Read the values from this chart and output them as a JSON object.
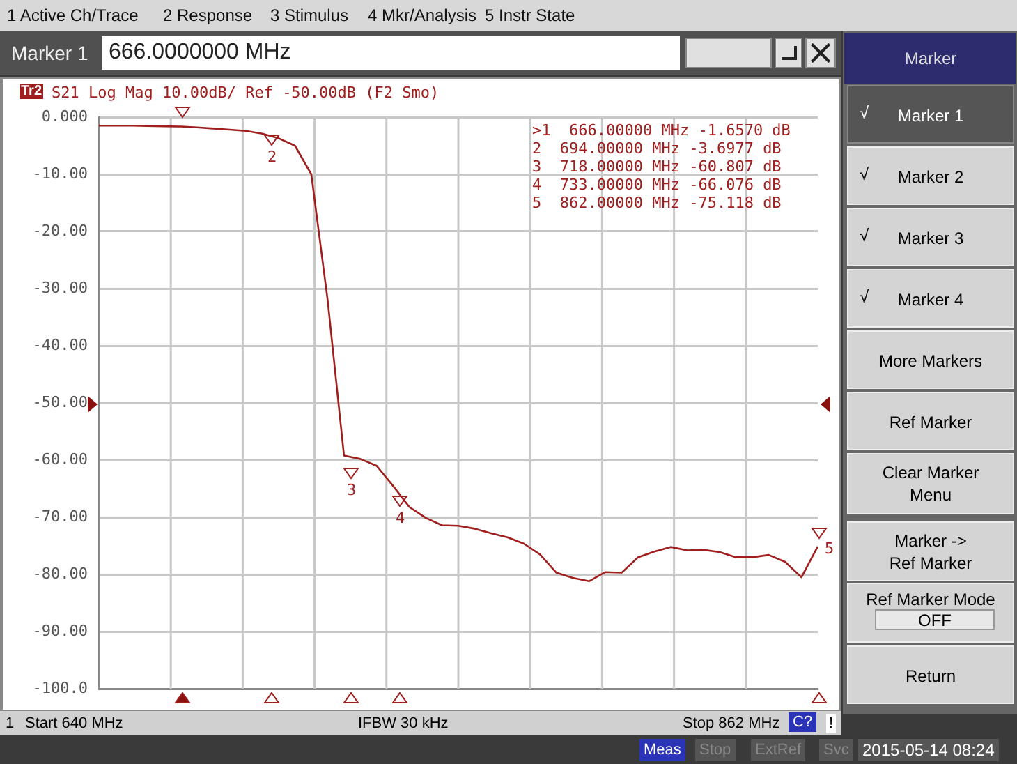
{
  "chart_data": {
    "type": "line",
    "title": "S21 Log Mag 10.00dB/ Ref -50.00dB (F2 Smo)",
    "categories": [
      null,
      null,
      null,
      null,
      null,
      null,
      null,
      null,
      null,
      null,
      null,
      null,
      null,
      null,
      null,
      null,
      null,
      null,
      null,
      null,
      null,
      null,
      null,
      null,
      null,
      null,
      null,
      null,
      null,
      null,
      null,
      null,
      null,
      null,
      null,
      null,
      null,
      null,
      null,
      null,
      null,
      null,
      null,
      null,
      null
    ],
    "series": [
      {
        "color": "#a01e1e",
        "values": [
          -1.5,
          -1.5,
          -1.5,
          -1.55,
          -1.6,
          -1.65,
          -1.8,
          -2,
          -2.2,
          -2.4,
          -2.9,
          -3.7,
          -5,
          -10,
          -32,
          -59.2,
          -59.8,
          -61,
          -64.5,
          -68.2,
          -70.1,
          -71.4,
          -71.5,
          -72,
          -72.8,
          -73.5,
          -74.6,
          -76.5,
          -79.7,
          -80.6,
          -81.2,
          -79.6,
          -79.7,
          -77,
          -76,
          -75.2,
          -75.8,
          -75.7,
          -76.1,
          -77,
          -77,
          -76.6,
          -77.8,
          -80.5,
          -75.1
        ]
      }
    ],
    "ylim": [
      -100,
      0
    ],
    "yticks": [
      {
        "value": 0,
        "label": "0.000"
      },
      {
        "value": -10,
        "label": "-10.00"
      },
      {
        "value": -20,
        "label": "-20.00"
      },
      {
        "value": -30,
        "label": "-30.00"
      },
      {
        "value": -40,
        "label": "-40.00"
      },
      {
        "value": -50,
        "label": "-50.00"
      },
      {
        "value": -60,
        "label": "-60.00"
      },
      {
        "value": -70,
        "label": "-70.00"
      },
      {
        "value": -80,
        "label": "-80.00"
      },
      {
        "value": -90,
        "label": "-90.00"
      },
      {
        "value": -100,
        "label": "-100.0"
      }
    ],
    "grid": true,
    "legend": false,
    "marker": "none",
    "line_style": "solid",
    "tick_labels": "y",
    "annotations": [
      "1 Active Ch/Trace",
      "2 Response",
      "3 Stimulus",
      "4 Mkr/Analysis",
      "5 Instr State",
      "Marker 1",
      "666.0000000 MHz",
      "Tr2",
      ">1  666.00000 MHz -1.6570 dB",
      "2  694.00000 MHz -3.6977 dB",
      "3  718.00000 MHz -60.807 dB",
      "4  733.00000 MHz -66.076 dB",
      "5  862.00000 MHz -75.118 dB",
      "1",
      "Start 640 MHz",
      "IFBW 30 kHz",
      "Stop 862 MHz",
      "C?",
      "!",
      "Meas",
      "Stop",
      "ExtRef",
      "Svc",
      "2015-05-14 08:24",
      "Marker",
      "Marker 1",
      "Marker 2",
      "Marker 3",
      "Marker 4",
      "More Markers",
      "Ref Marker",
      "Clear Marker Menu",
      "Marker -> Ref Marker",
      "Ref Marker Mode",
      "OFF",
      "Return",
      "√",
      "√",
      "√",
      "√",
      "2",
      "3",
      "4",
      "5"
    ]
  }
}
